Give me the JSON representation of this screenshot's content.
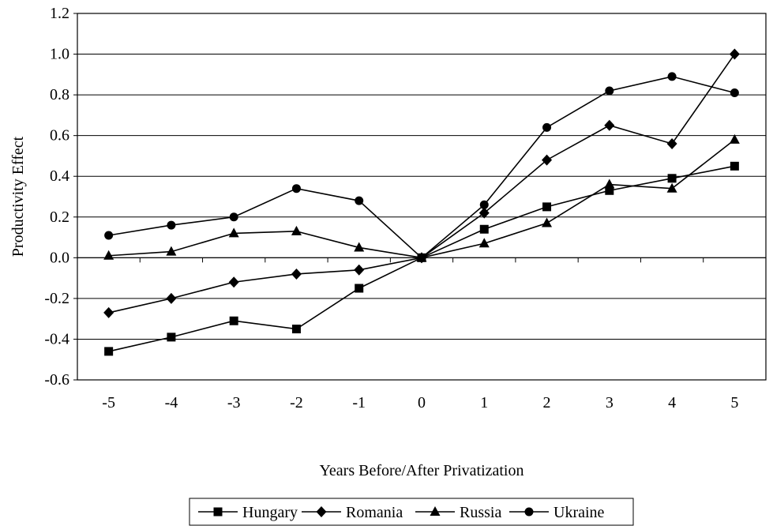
{
  "chart_data": {
    "type": "line",
    "title": "",
    "xlabel": "Years Before/After Privatization",
    "ylabel": "Productivity Effect",
    "x": [
      -5,
      -4,
      -3,
      -2,
      -1,
      0,
      1,
      2,
      3,
      4,
      5
    ],
    "x_tick_labels": [
      "-5",
      "-4",
      "-3",
      "-2",
      "-1",
      "0",
      "1",
      "2",
      "3",
      "4",
      "5"
    ],
    "ylim": [
      -0.6,
      1.2
    ],
    "y_tick_labels": [
      "-0.6",
      "-0.4",
      "-0.2",
      "0.0",
      "0.2",
      "0.4",
      "0.6",
      "0.8",
      "1.0",
      "1.2"
    ],
    "grid": "horizontal",
    "legend_position": "bottom",
    "series": [
      {
        "name": "Hungary",
        "marker": "square",
        "values": [
          -0.46,
          -0.39,
          -0.31,
          -0.35,
          -0.15,
          0.0,
          0.14,
          0.25,
          0.33,
          0.39,
          0.45
        ]
      },
      {
        "name": "Romania",
        "marker": "diamond",
        "values": [
          -0.27,
          -0.2,
          -0.12,
          -0.08,
          -0.06,
          0.0,
          0.22,
          0.48,
          0.65,
          0.56,
          1.0
        ]
      },
      {
        "name": "Russia",
        "marker": "triangle",
        "values": [
          0.01,
          0.03,
          0.12,
          0.13,
          0.05,
          0.0,
          0.07,
          0.17,
          0.36,
          0.34,
          0.58
        ]
      },
      {
        "name": "Ukraine",
        "marker": "circle",
        "values": [
          0.11,
          0.16,
          0.2,
          0.34,
          0.28,
          0.0,
          0.26,
          0.64,
          0.82,
          0.89,
          0.81
        ]
      }
    ]
  }
}
